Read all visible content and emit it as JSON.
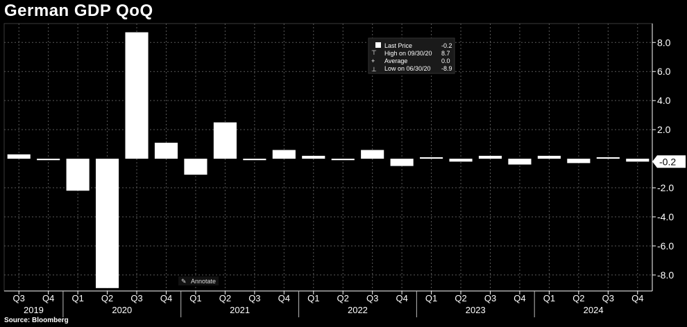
{
  "title": "German GDP QoQ",
  "source": "Source: Bloomberg",
  "annotate_label": "Annotate",
  "legend": {
    "rows": [
      {
        "label": "Last Price",
        "value": "-0.2"
      },
      {
        "label": "High on 09/30/20",
        "value": "8.7"
      },
      {
        "label": "Average",
        "value": "0.0"
      },
      {
        "label": "Low on 06/30/20",
        "value": "-8.9"
      }
    ]
  },
  "colors": {
    "background": "#000000",
    "bar": "#ffffff",
    "grid": "#5a5a5a",
    "legend_bg": "#1a1a1a"
  },
  "chart_data": {
    "type": "bar",
    "title": "German GDP QoQ",
    "categories": [
      "Q3 2019",
      "Q4 2019",
      "Q1 2020",
      "Q2 2020",
      "Q3 2020",
      "Q4 2020",
      "Q1 2021",
      "Q2 2021",
      "Q3 2021",
      "Q4 2021",
      "Q1 2022",
      "Q2 2022",
      "Q3 2022",
      "Q4 2022",
      "Q1 2023",
      "Q2 2023",
      "Q3 2023",
      "Q4 2023",
      "Q1 2024",
      "Q2 2024",
      "Q3 2024",
      "Q4 2024"
    ],
    "quarter_labels": [
      "Q3",
      "Q4",
      "Q1",
      "Q2",
      "Q3",
      "Q4",
      "Q1",
      "Q2",
      "Q3",
      "Q4",
      "Q1",
      "Q2",
      "Q3",
      "Q4",
      "Q1",
      "Q2",
      "Q3",
      "Q4",
      "Q1",
      "Q2",
      "Q3",
      "Q4"
    ],
    "year_labels": [
      {
        "year": "2019",
        "first": 0,
        "last": 1
      },
      {
        "year": "2020",
        "first": 2,
        "last": 5
      },
      {
        "year": "2021",
        "first": 6,
        "last": 9
      },
      {
        "year": "2022",
        "first": 10,
        "last": 13
      },
      {
        "year": "2023",
        "first": 14,
        "last": 17
      },
      {
        "year": "2024",
        "first": 18,
        "last": 21
      }
    ],
    "values": [
      0.3,
      -0.1,
      -2.2,
      -8.9,
      8.7,
      1.1,
      -1.1,
      2.5,
      -0.1,
      0.6,
      0.2,
      -0.1,
      0.6,
      -0.5,
      0.1,
      -0.2,
      0.2,
      -0.4,
      0.2,
      -0.3,
      0.1,
      -0.2
    ],
    "y_ticks": [
      8.0,
      6.0,
      4.0,
      2.0,
      -2.0,
      -4.0,
      -6.0,
      -8.0
    ],
    "y_tick_labels": [
      "8.0",
      "6.0",
      "4.0",
      "2.0",
      "-2.0",
      "-4.0",
      "-6.0",
      "-8.0"
    ],
    "ylim": [
      -9.1,
      9.3
    ],
    "last_value_label": "-0.2",
    "grid": true,
    "y_axis_side": "right",
    "legend_position": "top-center-right"
  }
}
